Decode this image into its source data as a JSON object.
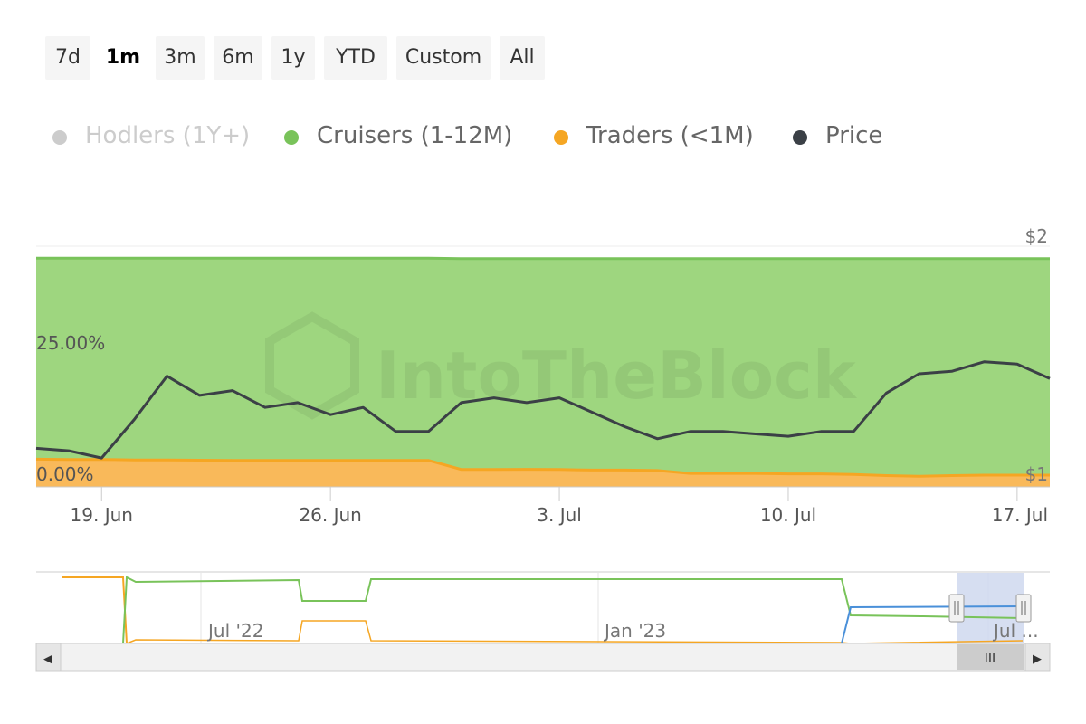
{
  "range_selector": {
    "buttons": [
      "7d",
      "1m",
      "3m",
      "6m",
      "1y",
      "YTD",
      "Custom",
      "All"
    ],
    "selected": "1m"
  },
  "legend": [
    {
      "name": "Hodlers (1Y+)",
      "color": "#cccccc",
      "visible": false
    },
    {
      "name": "Cruisers (1-12M)",
      "color": "#79c35a",
      "visible": true
    },
    {
      "name": "Traders (<1M)",
      "color": "#f5a623",
      "visible": true
    },
    {
      "name": "Price",
      "color": "#3b4046",
      "visible": true
    }
  ],
  "watermark": "IntoTheBlock",
  "chart_data": {
    "type": "area",
    "x_labels": [
      "19. Jun",
      "26. Jun",
      "3. Jul",
      "10. Jul",
      "17. Jul"
    ],
    "y_left_labels": [
      "25.00%",
      "0.00%"
    ],
    "y_right_labels": [
      "$2",
      "$1"
    ],
    "y_right_range": [
      1,
      2
    ],
    "dates": [
      "Jun 17",
      "Jun 18",
      "Jun 19",
      "Jun 20",
      "Jun 21",
      "Jun 22",
      "Jun 23",
      "Jun 24",
      "Jun 25",
      "Jun 26",
      "Jun 27",
      "Jun 28",
      "Jun 29",
      "Jun 30",
      "Jul 1",
      "Jul 2",
      "Jul 3",
      "Jul 4",
      "Jul 5",
      "Jul 6",
      "Jul 7",
      "Jul 8",
      "Jul 9",
      "Jul 10",
      "Jul 11",
      "Jul 12",
      "Jul 13",
      "Jul 14",
      "Jul 15",
      "Jul 16",
      "Jul 17",
      "Jul 18"
    ],
    "series": [
      {
        "name": "Cruisers (1-12M)",
        "type": "area",
        "values": [
          95,
          95,
          95,
          95,
          95,
          95,
          95,
          95,
          95,
          95,
          95,
          95,
          95,
          94.8,
          94.8,
          94.8,
          94.8,
          94.8,
          94.8,
          94.8,
          94.8,
          94.8,
          94.8,
          94.8,
          94.8,
          94.8,
          94.8,
          94.8,
          94.8,
          94.8,
          94.8,
          94.8
        ]
      },
      {
        "name": "Traders (<1M)",
        "type": "area",
        "values": [
          11.5,
          11.4,
          11.4,
          11.2,
          11.2,
          11.1,
          11.0,
          11.0,
          11.0,
          11.0,
          11.0,
          11.0,
          11.0,
          7.2,
          7.2,
          7.3,
          7.2,
          7.0,
          7.0,
          6.8,
          5.6,
          5.6,
          5.6,
          5.4,
          5.4,
          5.2,
          4.7,
          4.4,
          4.7,
          4.9,
          4.9,
          4.9
        ]
      },
      {
        "name": "Price",
        "type": "line",
        "values": [
          1.16,
          1.15,
          1.12,
          1.28,
          1.46,
          1.38,
          1.4,
          1.33,
          1.35,
          1.3,
          1.33,
          1.23,
          1.23,
          1.35,
          1.37,
          1.35,
          1.37,
          1.31,
          1.25,
          1.2,
          1.23,
          1.23,
          1.22,
          1.21,
          1.23,
          1.23,
          1.39,
          1.47,
          1.48,
          1.52,
          1.51,
          1.45
        ]
      }
    ]
  },
  "navigator": {
    "labels": [
      "Jul '22",
      "Jan '23",
      "Jul ..."
    ],
    "scrollbar": {
      "left_arrow": "◀",
      "right_arrow": "▶",
      "thumb_grip": "III"
    }
  }
}
